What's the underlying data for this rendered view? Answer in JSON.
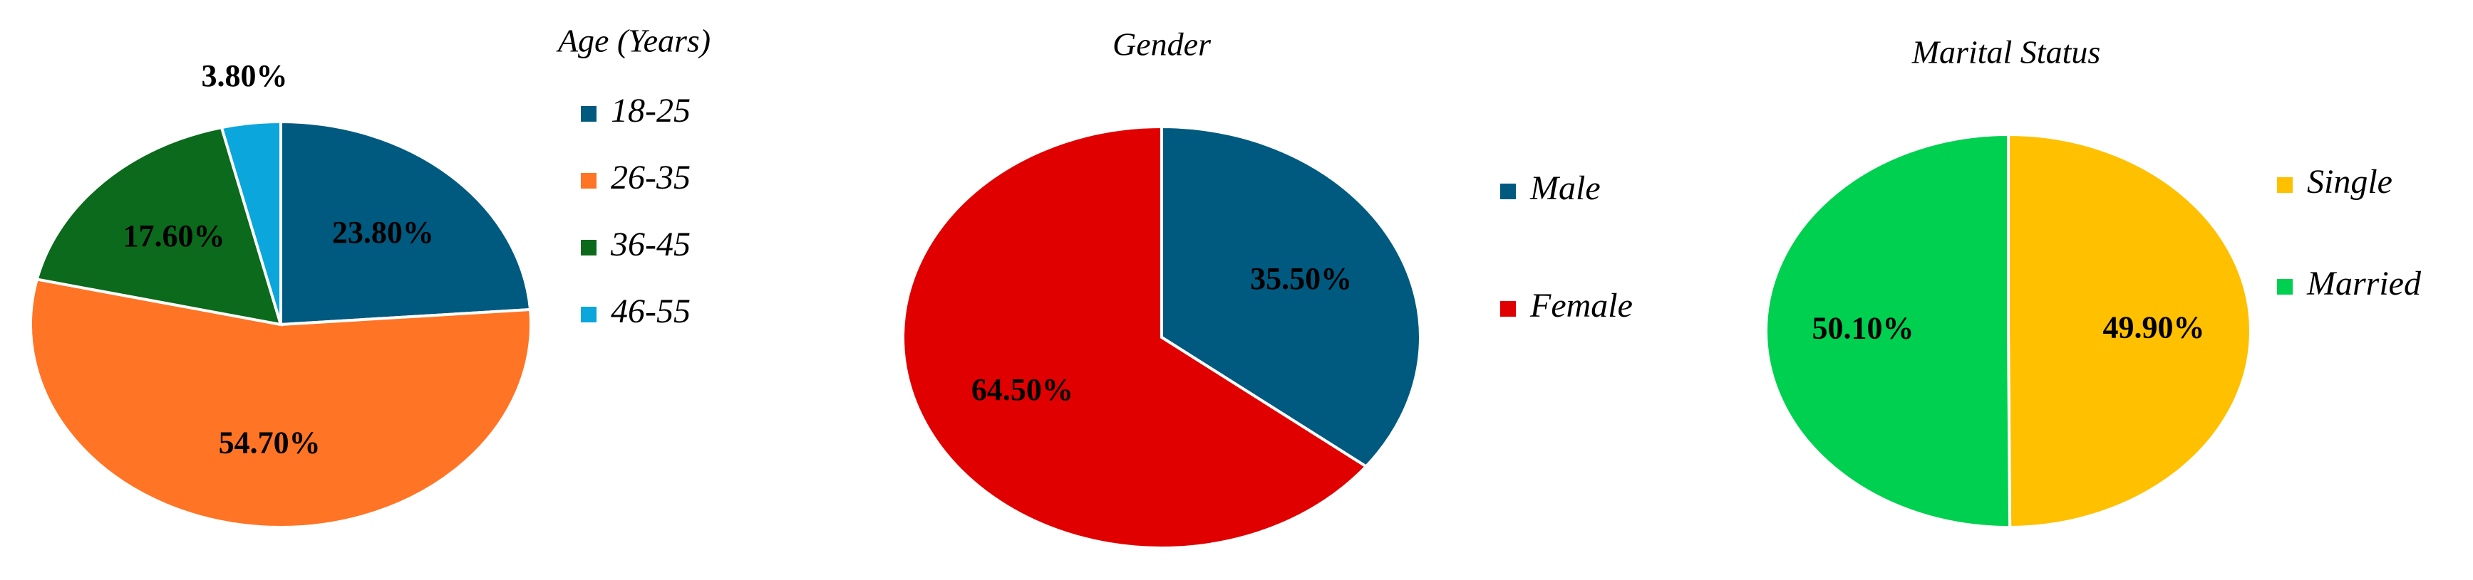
{
  "chart_data": [
    {
      "type": "pie",
      "title": "Age (Years)",
      "categories": [
        "18-25",
        "26-35",
        "36-45",
        "46-55"
      ],
      "values": [
        23.8,
        54.7,
        17.6,
        3.8
      ],
      "value_labels": [
        "23.80%",
        "54.70%",
        "17.60%",
        "3.80%"
      ],
      "colors": [
        "#005a80",
        "#ff7425",
        "#0b6a1c",
        "#0aa6dc"
      ]
    },
    {
      "type": "pie",
      "title": "Gender",
      "categories": [
        "Male",
        "Female"
      ],
      "values": [
        35.5,
        64.5
      ],
      "value_labels": [
        "35.50%",
        "64.50%"
      ],
      "colors": [
        "#005a80",
        "#e00000"
      ]
    },
    {
      "type": "pie",
      "title": "Marital Status",
      "categories": [
        "Single",
        "Married"
      ],
      "values": [
        49.9,
        50.1
      ],
      "value_labels": [
        "49.90%",
        "50.10%"
      ],
      "colors": [
        "#ffc000",
        "#00d050"
      ]
    }
  ]
}
